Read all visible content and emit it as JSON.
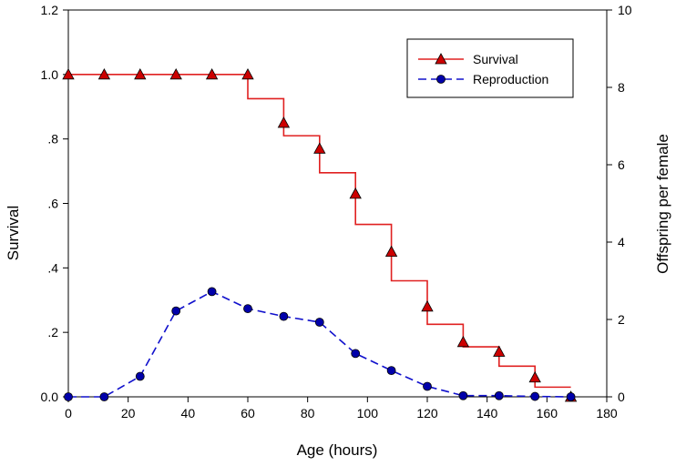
{
  "chart_data": {
    "type": "line",
    "xlabel": "Age (hours)",
    "ylabel_left": "Survival",
    "ylabel_right": "Offspring per female",
    "xlim": [
      0,
      180
    ],
    "ylim_left": [
      0,
      1.2
    ],
    "ylim_right": [
      0,
      10
    ],
    "x_ticks": [
      0,
      20,
      40,
      60,
      80,
      100,
      120,
      140,
      160,
      180
    ],
    "x_tick_labels": [
      "0",
      "20",
      "40",
      "60",
      "80",
      "100",
      "120",
      "140",
      "160",
      "180"
    ],
    "y_left_ticks": [
      0,
      0.2,
      0.4,
      0.6,
      0.8,
      1.0,
      1.2
    ],
    "y_left_tick_labels": [
      "0.0",
      ".2",
      ".4",
      ".6",
      ".8",
      "1.0",
      "1.2"
    ],
    "y_right_ticks": [
      0,
      2,
      4,
      6,
      8,
      10
    ],
    "y_right_tick_labels": [
      "0",
      "2",
      "4",
      "6",
      "8",
      "10"
    ],
    "legend_position": "top-right",
    "grid": false,
    "series": [
      {
        "name": "Survival",
        "axis": "left",
        "style": "step",
        "marker": "triangle",
        "color": "#e02020",
        "marker_fill": "#cc0000",
        "x": [
          0,
          12,
          24,
          36,
          48,
          60,
          72,
          84,
          96,
          108,
          120,
          132,
          144,
          156,
          168
        ],
        "y": [
          1.0,
          1.0,
          1.0,
          1.0,
          1.0,
          1.0,
          0.85,
          0.77,
          0.63,
          0.45,
          0.28,
          0.17,
          0.14,
          0.06,
          0.0
        ],
        "step_levels": [
          1.0,
          1.0,
          1.0,
          1.0,
          1.0,
          0.925,
          0.81,
          0.695,
          0.535,
          0.36,
          0.225,
          0.155,
          0.095,
          0.03
        ]
      },
      {
        "name": "Reproduction",
        "axis": "right",
        "style": "dashed",
        "marker": "circle",
        "color": "#1010cc",
        "marker_fill": "#0000aa",
        "x": [
          0,
          12,
          24,
          36,
          48,
          60,
          72,
          84,
          96,
          108,
          120,
          132,
          144,
          156,
          168
        ],
        "y": [
          0.0,
          0.0,
          0.53,
          2.22,
          2.72,
          2.28,
          2.08,
          1.93,
          1.12,
          0.68,
          0.27,
          0.03,
          0.03,
          0.01,
          0.0
        ]
      }
    ]
  }
}
